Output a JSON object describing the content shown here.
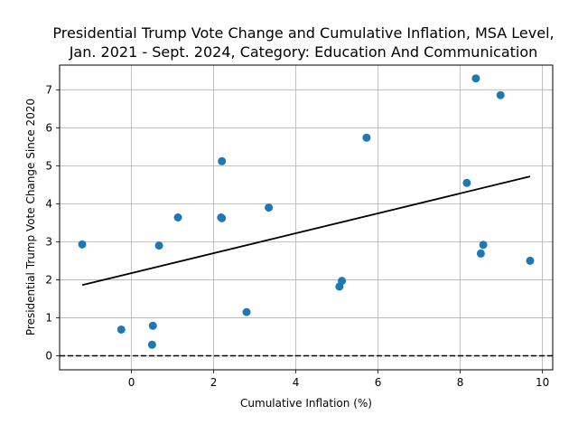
{
  "chart_data": {
    "type": "scatter",
    "title_lines": [
      "Presidential Trump Vote Change and Cumulative Inflation, MSA Level,",
      "Jan. 2021 - Sept. 2024, Category: Education And Communication"
    ],
    "xlabel": "Cumulative Inflation (%)",
    "ylabel": "Presidential Trump Vote Change Since 2020",
    "xlim": [
      -1.75,
      10.25
    ],
    "ylim": [
      -0.37,
      7.65
    ],
    "xticks": [
      0,
      2,
      4,
      6,
      8,
      10
    ],
    "yticks": [
      0,
      1,
      2,
      3,
      4,
      5,
      6,
      7
    ],
    "grid": true,
    "points": [
      {
        "x": -1.2,
        "y": 2.93
      },
      {
        "x": -0.25,
        "y": 0.69
      },
      {
        "x": 0.5,
        "y": 0.29
      },
      {
        "x": 0.52,
        "y": 0.79
      },
      {
        "x": 0.67,
        "y": 2.9
      },
      {
        "x": 1.13,
        "y": 3.64
      },
      {
        "x": 2.18,
        "y": 3.64
      },
      {
        "x": 2.2,
        "y": 3.62
      },
      {
        "x": 2.2,
        "y": 5.12
      },
      {
        "x": 2.8,
        "y": 1.15
      },
      {
        "x": 3.34,
        "y": 3.9
      },
      {
        "x": 5.06,
        "y": 1.82
      },
      {
        "x": 5.12,
        "y": 1.97
      },
      {
        "x": 5.72,
        "y": 5.74
      },
      {
        "x": 8.16,
        "y": 4.55
      },
      {
        "x": 8.38,
        "y": 7.3
      },
      {
        "x": 8.5,
        "y": 2.69
      },
      {
        "x": 8.56,
        "y": 2.92
      },
      {
        "x": 8.98,
        "y": 6.86
      },
      {
        "x": 9.7,
        "y": 2.5
      }
    ],
    "trendline": {
      "x": [
        -1.2,
        9.7
      ],
      "y": [
        1.86,
        4.72
      ]
    },
    "reference_line_y": 0,
    "colors": {
      "points": "#1f77b4",
      "trend": "#000000",
      "reference": "#000000",
      "grid": "#b0b0b0"
    }
  }
}
